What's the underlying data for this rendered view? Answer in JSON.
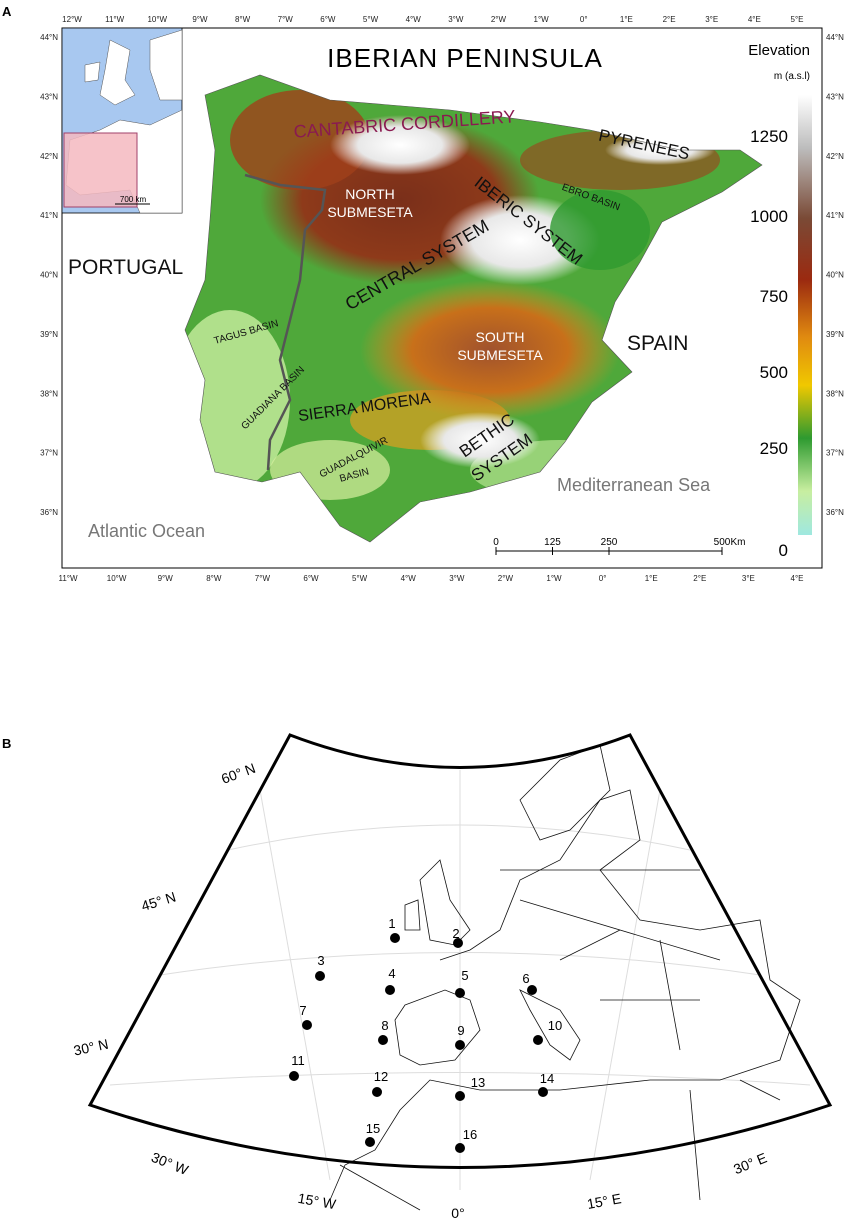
{
  "panel_a": {
    "label": "A",
    "title": "IBERIAN PENINSULA",
    "top_ticks": [
      "12°W",
      "11°W",
      "10°W",
      "9°W",
      "8°W",
      "7°W",
      "6°W",
      "5°W",
      "4°W",
      "3°W",
      "2°W",
      "1°W",
      "0°",
      "1°E",
      "2°E",
      "3°E",
      "4°E",
      "5°E"
    ],
    "bottom_ticks": [
      "11°W",
      "10°W",
      "9°W",
      "8°W",
      "7°W",
      "6°W",
      "5°W",
      "4°W",
      "3°W",
      "2°W",
      "1°W",
      "0°",
      "1°E",
      "2°E",
      "3°E",
      "4°E"
    ],
    "left_ticks": [
      "44°N",
      "43°N",
      "42°N",
      "41°N",
      "40°N",
      "39°N",
      "38°N",
      "37°N",
      "36°N"
    ],
    "right_ticks": [
      "44°N",
      "43°N",
      "42°N",
      "41°N",
      "40°N",
      "39°N",
      "38°N",
      "37°N",
      "36°N"
    ],
    "regions": {
      "cantabric": "CANTABRIC CORDILLERY",
      "pyrenees": "PYRENEES",
      "north_1": "NORTH",
      "north_2": "SUBMESETA",
      "iberic": "IBERIC SYSTEM",
      "ebro": "EBRO BASIN",
      "central": "CENTRAL SYSTEM",
      "portugal": "PORTUGAL",
      "spain": "SPAIN",
      "tagus": "TAGUS BASIN",
      "south_1": "SOUTH",
      "south_2": "SUBMESETA",
      "guadiana": "GUADIANA BASIN",
      "morena": "SIERRA MORENA",
      "guadalquivir_1": "GUADALQUIVIR",
      "guadalquivir_2": "BASIN",
      "bethic_1": "BETHIC",
      "bethic_2": "SYSTEM",
      "mediterranean": "Mediterranean Sea",
      "atlantic": "Atlantic Ocean"
    },
    "inset_scale": "700 km",
    "legend": {
      "title": "Elevation",
      "unit": "m (a.s.l)",
      "ticks": [
        1250,
        1000,
        750,
        500,
        250,
        0
      ]
    },
    "scale_bar": {
      "ticks": [
        0,
        125,
        250,
        500
      ],
      "unit": "Km"
    }
  },
  "panel_b": {
    "label": "B",
    "lat_labels": [
      "60° N",
      "45° N",
      "30° N"
    ],
    "lon_labels": [
      "30° W",
      "15° W",
      "0°",
      "15° E",
      "30° E"
    ],
    "sites": [
      "1",
      "2",
      "3",
      "4",
      "5",
      "6",
      "7",
      "8",
      "9",
      "10",
      "11",
      "12",
      "13",
      "14",
      "15",
      "16"
    ]
  }
}
